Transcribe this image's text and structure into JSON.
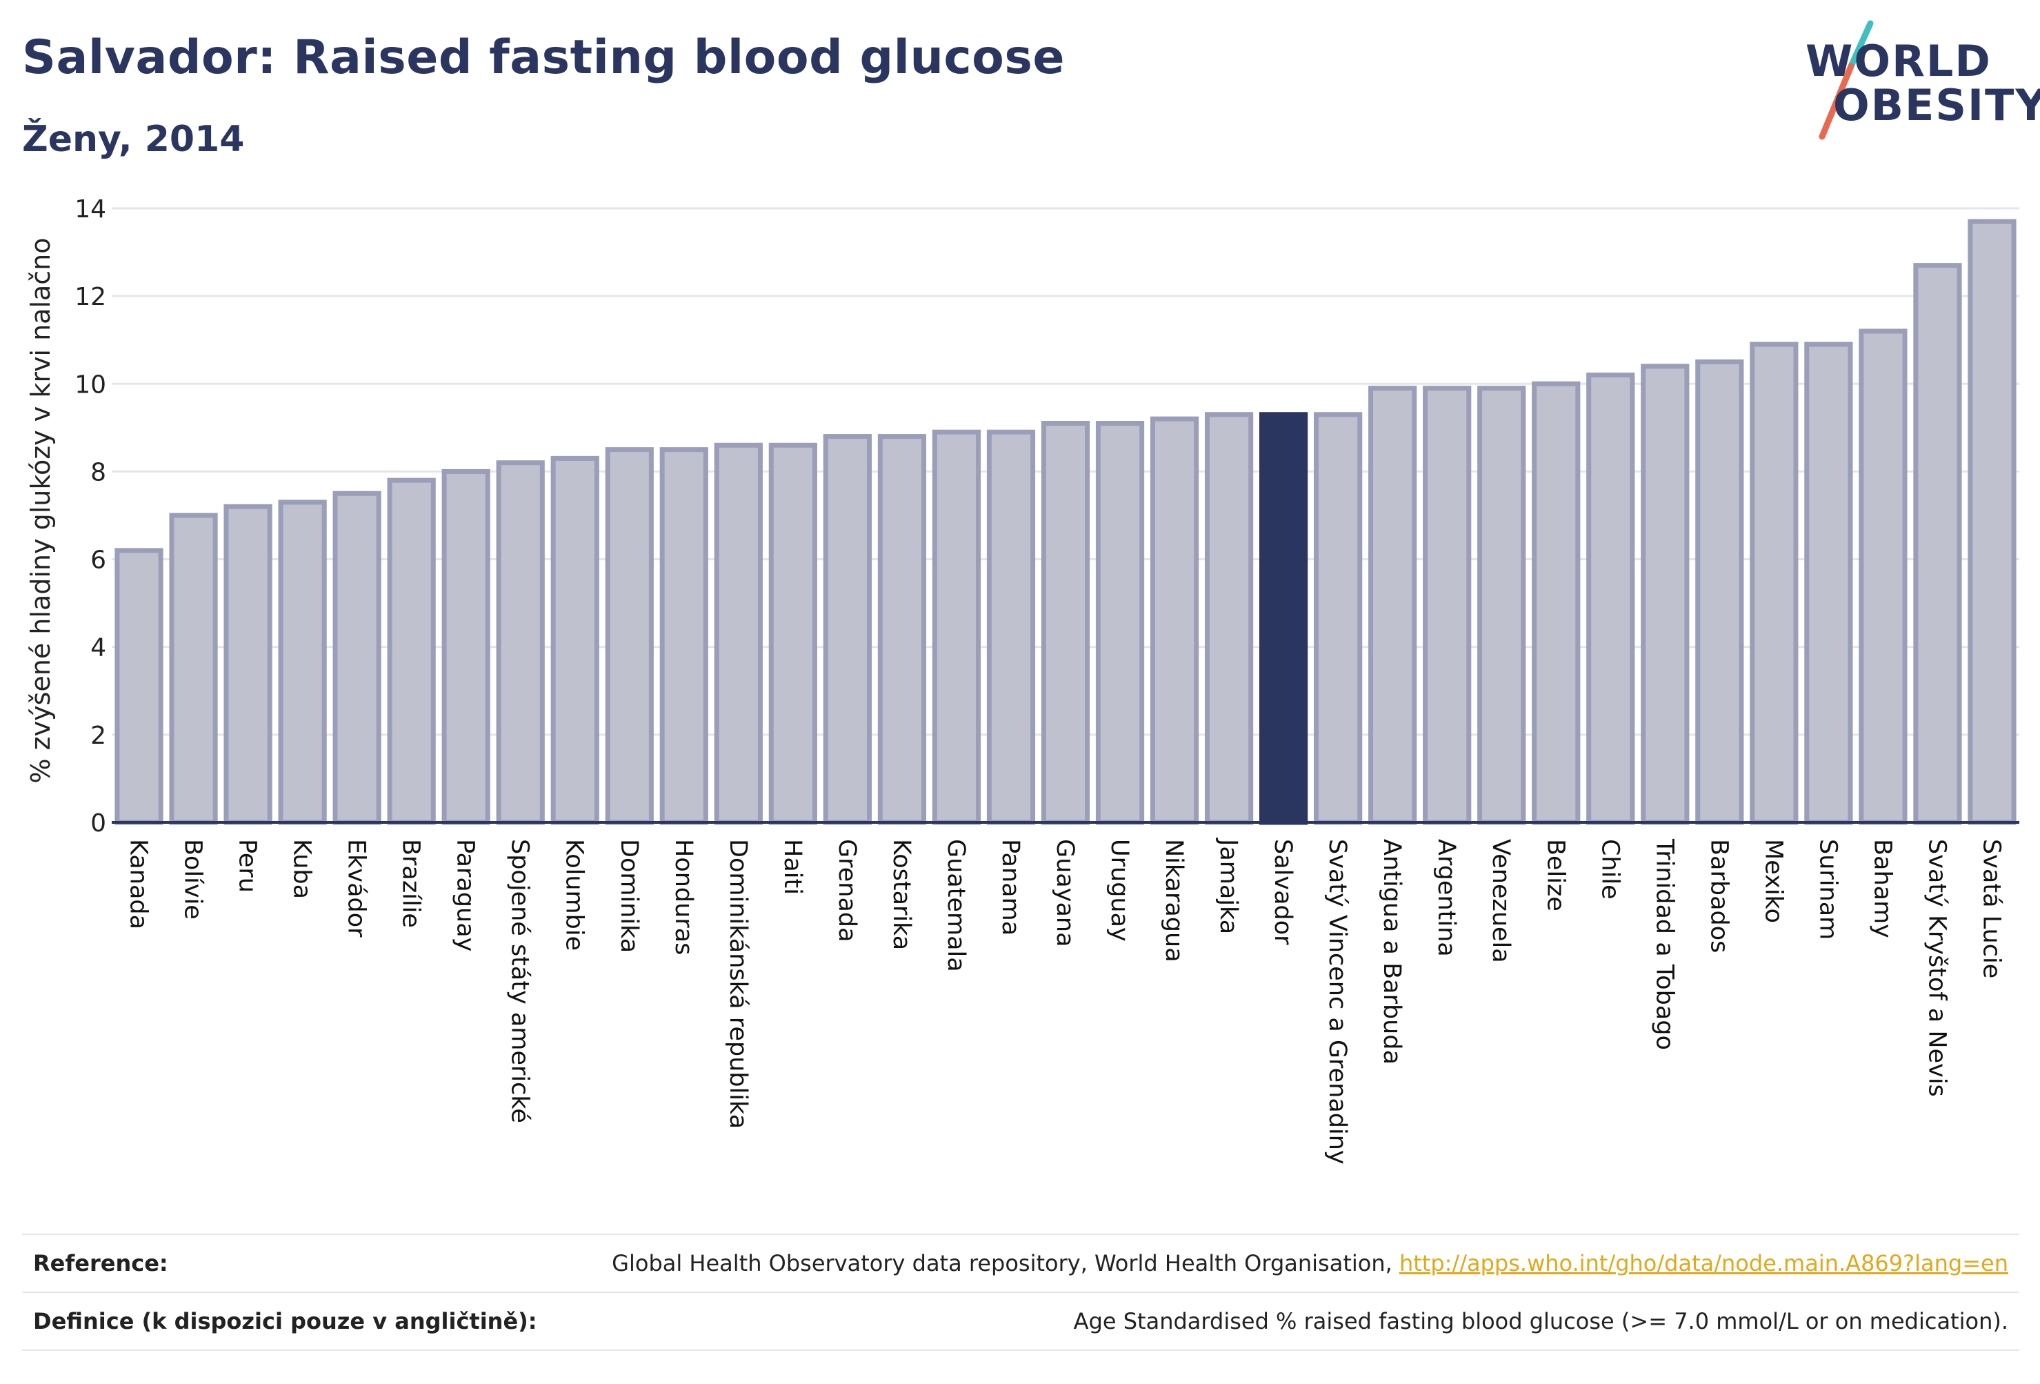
{
  "title": "Salvador: Raised fasting blood glucose",
  "subtitle": "Ženy, 2014",
  "logo": {
    "line1": "WORLD",
    "line2": "OBESITY",
    "accent_colors": [
      "#3fbfbf",
      "#e8694f"
    ]
  },
  "colors": {
    "bar_default": "#bfc1cf",
    "bar_border": "#9a9eb8",
    "bar_highlight": "#2a3560",
    "grid": "#e4e5ea",
    "axis": "#2a3560",
    "link": "#e0a81c"
  },
  "chart_data": {
    "type": "bar",
    "ylabel": "% zvýšené hladiny glukózy v krvi nalačno",
    "ylim": [
      0,
      14
    ],
    "yticks": [
      0,
      2,
      4,
      6,
      8,
      10,
      12,
      14
    ],
    "grid": true,
    "highlight": "Salvador",
    "categories": [
      "Kanada",
      "Bolívie",
      "Peru",
      "Kuba",
      "Ekvádor",
      "Brazílie",
      "Paraguay",
      "Spojené státy americké",
      "Kolumbie",
      "Dominika",
      "Honduras",
      "Dominikánská republika",
      "Haiti",
      "Grenada",
      "Kostarika",
      "Guatemala",
      "Panama",
      "Guayana",
      "Uruguay",
      "Nikaragua",
      "Jamajka",
      "Salvador",
      "Svatý Vincenc a Grenadiny",
      "Antigua a Barbuda",
      "Argentina",
      "Venezuela",
      "Belize",
      "Chile",
      "Trinidad a Tobago",
      "Barbados",
      "Mexiko",
      "Surinam",
      "Bahamy",
      "Svatý Kryštof a Nevis",
      "Svatá Lucie"
    ],
    "values": [
      6.2,
      7.0,
      7.2,
      7.3,
      7.5,
      7.8,
      8.0,
      8.2,
      8.3,
      8.5,
      8.5,
      8.6,
      8.6,
      8.8,
      8.8,
      8.9,
      8.9,
      9.1,
      9.1,
      9.2,
      9.3,
      9.3,
      9.3,
      9.9,
      9.9,
      9.9,
      10.0,
      10.2,
      10.4,
      10.5,
      10.9,
      10.9,
      11.2,
      12.7,
      13.7
    ]
  },
  "reference": {
    "label": "Reference:",
    "text": "Global Health Observatory data repository, World Health Organisation, ",
    "link": "http://apps.who.int/gho/data/node.main.A869?lang=en"
  },
  "definition": {
    "label": "Definice (k dispozici pouze v angličtině):",
    "text": "Age Standardised % raised fasting blood glucose (>= 7.0 mmol/L or on medication)."
  }
}
